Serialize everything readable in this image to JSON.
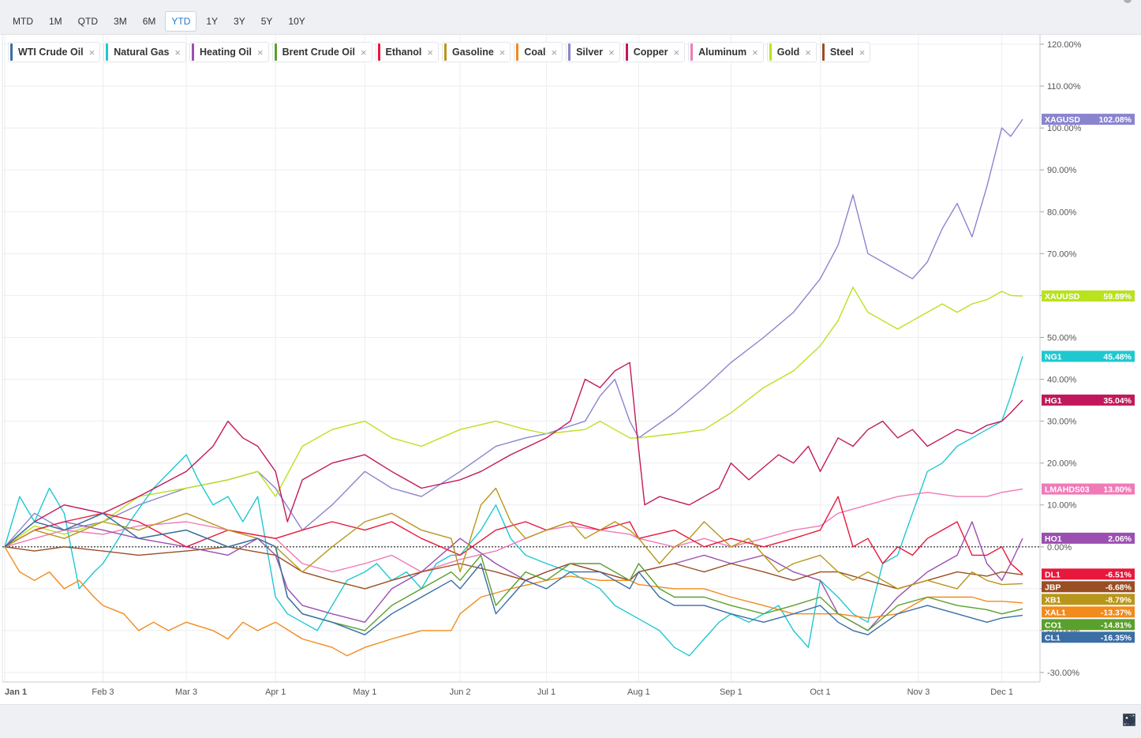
{
  "ranges": [
    "MTD",
    "1M",
    "QTD",
    "3M",
    "6M",
    "YTD",
    "1Y",
    "3Y",
    "5Y",
    "10Y"
  ],
  "active_range": "YTD",
  "legend": [
    {
      "name": "WTI Crude Oil",
      "color": "#3a6ea5"
    },
    {
      "name": "Natural Gas",
      "color": "#1fc8d0"
    },
    {
      "name": "Heating Oil",
      "color": "#9b4fb0"
    },
    {
      "name": "Brent Crude Oil",
      "color": "#5aa02c"
    },
    {
      "name": "Ethanol",
      "color": "#e8173c"
    },
    {
      "name": "Gasoline",
      "color": "#b8961b"
    },
    {
      "name": "Coal",
      "color": "#f28a1c"
    },
    {
      "name": "Silver",
      "color": "#8a84cf"
    },
    {
      "name": "Copper",
      "color": "#c2185b"
    },
    {
      "name": "Aluminum",
      "color": "#f07ab8"
    },
    {
      "name": "Gold",
      "color": "#b9e21f"
    },
    {
      "name": "Steel",
      "color": "#9a4e23"
    }
  ],
  "chart_data": {
    "type": "line",
    "ylim": [
      -30,
      120
    ],
    "y_ticks": [
      "120.00%",
      "110.00%",
      "100.00%",
      "90.00%",
      "80.00%",
      "70.00%",
      "60.00%",
      "50.00%",
      "40.00%",
      "30.00%",
      "20.00%",
      "10.00%",
      "0.00%",
      "-10.00%",
      "-20.00%",
      "-30.00%"
    ],
    "y_tick_values": [
      120,
      110,
      100,
      90,
      80,
      70,
      60,
      50,
      40,
      30,
      20,
      10,
      0,
      -10,
      -20,
      -30
    ],
    "x_ticks": [
      "Jan 1",
      "Feb 3",
      "Mar 3",
      "Apr 1",
      "May 1",
      "Jun 2",
      "Jul 1",
      "Aug 1",
      "Sep 1",
      "Oct 1",
      "Nov 3",
      "Dec 1"
    ],
    "x_tick_days": [
      0,
      33,
      61,
      91,
      121,
      153,
      182,
      213,
      244,
      274,
      307,
      335
    ],
    "x_max_day": 342,
    "baseline": 0,
    "series": [
      {
        "name": "Silver",
        "symbol": "XAGUSD",
        "color": "#8a84cf",
        "last": 102.08,
        "label": "102.08%",
        "x": [
          0,
          10,
          20,
          33,
          45,
          61,
          75,
          85,
          91,
          100,
          110,
          121,
          130,
          140,
          153,
          165,
          175,
          182,
          195,
          200,
          205,
          210,
          213,
          225,
          235,
          244,
          255,
          265,
          274,
          280,
          285,
          290,
          295,
          300,
          305,
          310,
          315,
          320,
          325,
          330,
          335,
          338,
          342
        ],
        "y": [
          0,
          8,
          4,
          6,
          10,
          14,
          16,
          18,
          14,
          4,
          10,
          18,
          14,
          12,
          18,
          24,
          26,
          27,
          30,
          36,
          40,
          30,
          26,
          32,
          38,
          44,
          50,
          56,
          64,
          72,
          84,
          70,
          68,
          66,
          64,
          68,
          76,
          82,
          74,
          86,
          100,
          98,
          102.08
        ]
      },
      {
        "name": "Gold",
        "symbol": "XAUUSD",
        "color": "#b9e21f",
        "last": 59.89,
        "label": "59.89%",
        "x": [
          0,
          10,
          20,
          33,
          45,
          61,
          75,
          85,
          91,
          100,
          110,
          121,
          130,
          140,
          153,
          165,
          175,
          182,
          195,
          200,
          205,
          210,
          213,
          225,
          235,
          244,
          255,
          265,
          274,
          280,
          285,
          290,
          295,
          300,
          305,
          310,
          315,
          320,
          325,
          330,
          335,
          338,
          342
        ],
        "y": [
          0,
          5,
          3,
          6,
          12,
          14,
          16,
          18,
          12,
          24,
          28,
          30,
          26,
          24,
          28,
          30,
          28,
          27,
          28,
          30,
          28,
          26,
          26,
          27,
          28,
          32,
          38,
          42,
          48,
          54,
          62,
          56,
          54,
          52,
          54,
          56,
          58,
          56,
          58,
          59,
          61,
          60,
          59.89
        ]
      },
      {
        "name": "Natural Gas",
        "symbol": "NG1",
        "color": "#1fc8d0",
        "last": 45.48,
        "label": "45.48%",
        "x": [
          0,
          5,
          10,
          15,
          20,
          25,
          30,
          33,
          40,
          50,
          61,
          65,
          70,
          75,
          80,
          85,
          91,
          95,
          100,
          105,
          110,
          115,
          121,
          125,
          130,
          135,
          140,
          145,
          150,
          153,
          160,
          165,
          170,
          175,
          182,
          190,
          200,
          205,
          210,
          215,
          220,
          225,
          230,
          235,
          240,
          244,
          250,
          255,
          260,
          265,
          270,
          274,
          280,
          285,
          290,
          295,
          300,
          305,
          310,
          315,
          320,
          325,
          330,
          335,
          338,
          342
        ],
        "y": [
          0,
          12,
          6,
          14,
          8,
          -10,
          -6,
          -4,
          4,
          14,
          22,
          16,
          10,
          12,
          6,
          12,
          -12,
          -16,
          -18,
          -20,
          -14,
          -8,
          -6,
          -4,
          -8,
          -6,
          -10,
          -4,
          -2,
          -2,
          4,
          10,
          2,
          -2,
          -4,
          -6,
          -10,
          -14,
          -16,
          -18,
          -20,
          -24,
          -26,
          -22,
          -18,
          -16,
          -18,
          -16,
          -14,
          -20,
          -24,
          -8,
          -12,
          -16,
          -18,
          -4,
          -2,
          8,
          18,
          20,
          24,
          26,
          28,
          30,
          36,
          45.48
        ]
      },
      {
        "name": "Copper",
        "symbol": "HG1",
        "color": "#c2185b",
        "last": 35.04,
        "label": "35.04%",
        "x": [
          0,
          10,
          20,
          33,
          45,
          61,
          70,
          75,
          80,
          85,
          91,
          95,
          100,
          110,
          121,
          130,
          140,
          153,
          160,
          170,
          182,
          190,
          195,
          200,
          205,
          210,
          212,
          215,
          220,
          230,
          240,
          244,
          250,
          260,
          265,
          270,
          274,
          280,
          285,
          290,
          295,
          300,
          305,
          310,
          315,
          320,
          325,
          330,
          335,
          338,
          342
        ],
        "y": [
          0,
          6,
          10,
          8,
          12,
          18,
          24,
          30,
          26,
          24,
          18,
          6,
          16,
          20,
          22,
          18,
          14,
          16,
          18,
          22,
          26,
          30,
          40,
          38,
          42,
          44,
          30,
          10,
          12,
          10,
          14,
          20,
          16,
          22,
          20,
          24,
          18,
          26,
          24,
          28,
          30,
          26,
          28,
          24,
          26,
          28,
          27,
          29,
          30,
          32,
          35.04
        ]
      },
      {
        "name": "Aluminum",
        "symbol": "LMAHDS03",
        "color": "#f07ab8",
        "last": 13.8,
        "label": "13.80%",
        "x": [
          0,
          10,
          20,
          33,
          45,
          61,
          75,
          91,
          100,
          110,
          121,
          130,
          140,
          153,
          165,
          175,
          182,
          190,
          200,
          210,
          213,
          225,
          235,
          244,
          255,
          265,
          274,
          280,
          290,
          300,
          310,
          320,
          330,
          335,
          342
        ],
        "y": [
          0,
          2,
          4,
          3,
          5,
          6,
          4,
          2,
          -4,
          -6,
          -4,
          -2,
          -6,
          -3,
          -1,
          2,
          4,
          5,
          4,
          3,
          2,
          0,
          2,
          0,
          2,
          4,
          5,
          8,
          10,
          12,
          13,
          12,
          12,
          13,
          13.8
        ]
      },
      {
        "name": "Heating Oil",
        "symbol": "HO1",
        "color": "#9b4fb0",
        "last": 2.06,
        "label": "2.06%",
        "x": [
          0,
          10,
          20,
          33,
          45,
          61,
          75,
          85,
          91,
          95,
          100,
          110,
          121,
          130,
          140,
          153,
          165,
          175,
          182,
          190,
          200,
          210,
          213,
          225,
          235,
          244,
          255,
          265,
          274,
          280,
          290,
          300,
          310,
          320,
          325,
          330,
          335,
          338,
          342
        ],
        "y": [
          0,
          4,
          6,
          4,
          2,
          0,
          -2,
          2,
          -2,
          -10,
          -14,
          -16,
          -18,
          -10,
          -6,
          2,
          -4,
          -8,
          -6,
          -4,
          -6,
          -8,
          -6,
          -4,
          -2,
          -4,
          -2,
          -6,
          -8,
          -16,
          -20,
          -12,
          -6,
          -2,
          6,
          -4,
          -8,
          -4,
          2.06
        ]
      },
      {
        "name": "Ethanol",
        "symbol": "DL1",
        "color": "#e8173c",
        "last": -6.51,
        "label": "-6.51%",
        "x": [
          0,
          10,
          20,
          33,
          45,
          61,
          75,
          91,
          100,
          110,
          121,
          130,
          140,
          153,
          165,
          175,
          182,
          190,
          200,
          210,
          213,
          225,
          235,
          244,
          255,
          265,
          274,
          280,
          285,
          290,
          295,
          300,
          305,
          310,
          315,
          320,
          325,
          330,
          335,
          338,
          342
        ],
        "y": [
          0,
          4,
          6,
          8,
          6,
          0,
          4,
          2,
          4,
          6,
          4,
          6,
          2,
          -2,
          4,
          6,
          4,
          6,
          4,
          6,
          2,
          4,
          0,
          2,
          0,
          2,
          4,
          12,
          0,
          2,
          -4,
          0,
          -2,
          2,
          4,
          6,
          -2,
          -2,
          0,
          -4,
          -6.51
        ]
      },
      {
        "name": "Steel",
        "symbol": "JBP",
        "color": "#9a4e23",
        "last": -6.68,
        "label": "-6.68%",
        "x": [
          0,
          10,
          20,
          33,
          45,
          61,
          75,
          91,
          100,
          110,
          121,
          130,
          140,
          153,
          165,
          175,
          182,
          190,
          200,
          210,
          213,
          225,
          235,
          244,
          255,
          265,
          274,
          280,
          290,
          300,
          310,
          320,
          330,
          335,
          342
        ],
        "y": [
          0,
          -1,
          0,
          -1,
          -2,
          -1,
          0,
          -2,
          -6,
          -8,
          -10,
          -8,
          -6,
          -4,
          -6,
          -8,
          -6,
          -4,
          -6,
          -8,
          -6,
          -4,
          -6,
          -4,
          -6,
          -8,
          -6,
          -6,
          -8,
          -10,
          -8,
          -6,
          -7,
          -6,
          -6.68
        ]
      },
      {
        "name": "Gasoline",
        "symbol": "XB1",
        "color": "#b8961b",
        "last": -8.79,
        "label": "-8.79%",
        "x": [
          0,
          10,
          20,
          33,
          45,
          61,
          75,
          85,
          91,
          100,
          110,
          121,
          130,
          140,
          150,
          153,
          160,
          165,
          170,
          175,
          182,
          190,
          195,
          200,
          205,
          210,
          213,
          220,
          225,
          230,
          235,
          244,
          250,
          255,
          260,
          265,
          274,
          280,
          285,
          290,
          300,
          310,
          320,
          325,
          330,
          335,
          342
        ],
        "y": [
          0,
          4,
          2,
          6,
          4,
          8,
          4,
          2,
          0,
          -6,
          0,
          6,
          8,
          4,
          2,
          -6,
          10,
          14,
          6,
          2,
          4,
          6,
          2,
          4,
          6,
          4,
          2,
          -4,
          0,
          2,
          6,
          0,
          2,
          -2,
          -6,
          -4,
          -2,
          -6,
          -8,
          -6,
          -10,
          -8,
          -10,
          -6,
          -8,
          -9,
          -8.79
        ]
      },
      {
        "name": "Coal",
        "symbol": "XAL1",
        "color": "#f28a1c",
        "last": -13.37,
        "label": "-13.37%",
        "x": [
          0,
          5,
          10,
          15,
          20,
          25,
          30,
          33,
          40,
          45,
          50,
          55,
          61,
          70,
          75,
          80,
          85,
          91,
          100,
          110,
          115,
          121,
          130,
          140,
          150,
          153,
          160,
          170,
          182,
          190,
          200,
          210,
          213,
          225,
          235,
          244,
          255,
          265,
          274,
          280,
          290,
          300,
          305,
          310,
          320,
          325,
          330,
          335,
          342
        ],
        "y": [
          0,
          -6,
          -8,
          -6,
          -10,
          -8,
          -12,
          -14,
          -16,
          -20,
          -18,
          -20,
          -18,
          -20,
          -22,
          -18,
          -20,
          -18,
          -22,
          -24,
          -26,
          -24,
          -22,
          -20,
          -20,
          -16,
          -12,
          -10,
          -8,
          -7,
          -8,
          -8,
          -9,
          -10,
          -10,
          -12,
          -14,
          -16,
          -16,
          -16,
          -17,
          -16,
          -14,
          -12,
          -12,
          -12,
          -13,
          -13,
          -13.37
        ]
      },
      {
        "name": "Brent Crude Oil",
        "symbol": "CO1",
        "color": "#5aa02c",
        "last": -14.81,
        "label": "-14.81%",
        "x": [
          0,
          10,
          20,
          33,
          45,
          61,
          75,
          85,
          91,
          95,
          100,
          110,
          121,
          130,
          140,
          150,
          153,
          160,
          165,
          170,
          175,
          182,
          190,
          200,
          205,
          210,
          213,
          220,
          225,
          235,
          244,
          255,
          265,
          274,
          280,
          285,
          290,
          300,
          310,
          320,
          330,
          335,
          342
        ],
        "y": [
          0,
          6,
          4,
          8,
          2,
          4,
          0,
          2,
          0,
          -12,
          -16,
          -18,
          -20,
          -14,
          -10,
          -6,
          -8,
          -2,
          -14,
          -10,
          -6,
          -8,
          -4,
          -4,
          -6,
          -8,
          -4,
          -10,
          -12,
          -12,
          -14,
          -16,
          -14,
          -12,
          -16,
          -18,
          -20,
          -14,
          -12,
          -14,
          -15,
          -16,
          -14.81
        ]
      },
      {
        "name": "WTI Crude Oil",
        "symbol": "CL1",
        "color": "#3a6ea5",
        "last": -16.35,
        "label": "-16.35%",
        "x": [
          0,
          10,
          20,
          33,
          45,
          61,
          75,
          85,
          91,
          95,
          100,
          110,
          121,
          130,
          140,
          150,
          153,
          160,
          165,
          170,
          175,
          182,
          190,
          200,
          205,
          210,
          213,
          220,
          225,
          235,
          244,
          255,
          265,
          274,
          280,
          285,
          290,
          300,
          310,
          320,
          330,
          335,
          342
        ],
        "y": [
          0,
          6,
          4,
          8,
          2,
          4,
          0,
          2,
          0,
          -12,
          -16,
          -18,
          -21,
          -16,
          -12,
          -8,
          -10,
          -4,
          -16,
          -12,
          -8,
          -10,
          -6,
          -6,
          -8,
          -10,
          -6,
          -12,
          -14,
          -14,
          -16,
          -18,
          -16,
          -14,
          -18,
          -20,
          -21,
          -16,
          -14,
          -16,
          -18,
          -17,
          -16.35
        ]
      }
    ]
  },
  "toolbar_icons": [
    "hide-icon",
    "history-icon",
    "grid-icon",
    "tags-icon"
  ]
}
